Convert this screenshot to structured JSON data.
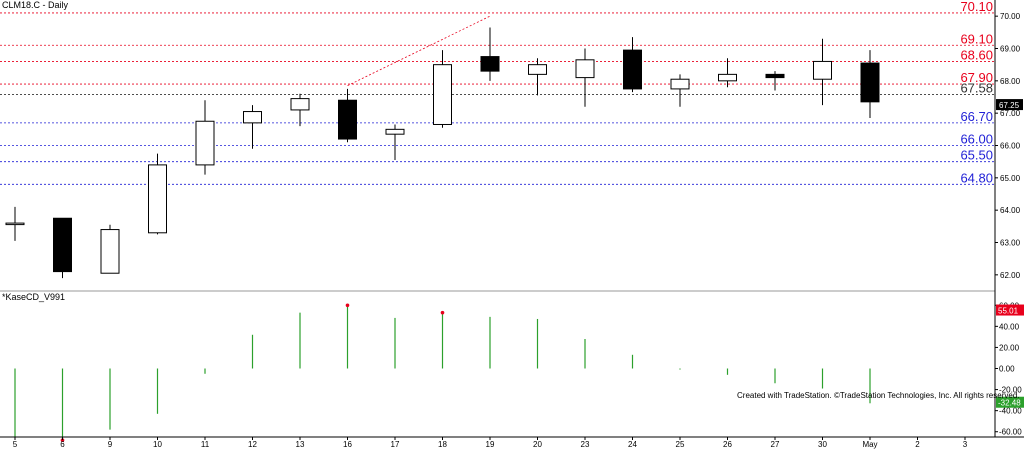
{
  "chart_data": [
    {
      "type": "candlestick",
      "title": "CLM18.C - Daily",
      "ylim": [
        61.5,
        70.5
      ],
      "y_ticks": [
        "70.00",
        "69.00",
        "68.00",
        "67.00",
        "66.00",
        "65.00",
        "64.00",
        "63.00",
        "62.00"
      ],
      "categories": [
        "5",
        "6",
        "9",
        "10",
        "11",
        "12",
        "13",
        "16",
        "17",
        "18",
        "19",
        "20",
        "23",
        "24",
        "25",
        "26",
        "27",
        "30",
        "May",
        "2",
        "3"
      ],
      "candles": [
        {
          "x": "5",
          "open": 63.6,
          "high": 64.1,
          "low": 63.05,
          "close": 63.6
        },
        {
          "x": "6",
          "open": 63.75,
          "high": 63.75,
          "low": 61.9,
          "close": 62.1
        },
        {
          "x": "9",
          "open": 62.05,
          "high": 63.55,
          "low": 62.05,
          "close": 63.4
        },
        {
          "x": "10",
          "open": 63.3,
          "high": 65.75,
          "low": 63.25,
          "close": 65.4
        },
        {
          "x": "11",
          "open": 65.4,
          "high": 67.4,
          "low": 65.1,
          "close": 66.75
        },
        {
          "x": "12",
          "open": 66.7,
          "high": 67.25,
          "low": 65.9,
          "close": 67.05
        },
        {
          "x": "13",
          "open": 67.1,
          "high": 67.6,
          "low": 66.6,
          "close": 67.45
        },
        {
          "x": "16",
          "open": 67.4,
          "high": 67.75,
          "low": 66.1,
          "close": 66.2
        },
        {
          "x": "17",
          "open": 66.35,
          "high": 66.65,
          "low": 65.55,
          "close": 66.5
        },
        {
          "x": "18",
          "open": 66.65,
          "high": 68.95,
          "low": 66.55,
          "close": 68.5
        },
        {
          "x": "19",
          "open": 68.75,
          "high": 69.65,
          "low": 68.0,
          "close": 68.3
        },
        {
          "x": "20",
          "open": 68.2,
          "high": 68.7,
          "low": 67.55,
          "close": 68.5
        },
        {
          "x": "23",
          "open": 68.1,
          "high": 69.0,
          "low": 67.2,
          "close": 68.65
        },
        {
          "x": "24",
          "open": 68.95,
          "high": 69.35,
          "low": 67.65,
          "close": 67.75
        },
        {
          "x": "25",
          "open": 67.75,
          "high": 68.2,
          "low": 67.2,
          "close": 68.05
        },
        {
          "x": "26",
          "open": 68.0,
          "high": 68.7,
          "low": 67.8,
          "close": 68.2
        },
        {
          "x": "27",
          "open": 68.2,
          "high": 68.3,
          "low": 67.7,
          "close": 68.1
        },
        {
          "x": "30",
          "open": 68.05,
          "high": 69.3,
          "low": 67.25,
          "close": 68.6
        },
        {
          "x": "May",
          "open": 68.55,
          "high": 68.95,
          "low": 66.85,
          "close": 67.35
        }
      ],
      "levels": [
        {
          "value": 70.1,
          "label": "70.10",
          "color": "#e8001c"
        },
        {
          "value": 69.1,
          "label": "69.10",
          "color": "#e8001c"
        },
        {
          "value": 68.6,
          "label": "68.60",
          "color": "#e8001c"
        },
        {
          "value": 67.9,
          "label": "67.90",
          "color": "#e8001c"
        },
        {
          "value": 67.58,
          "label": "67.58",
          "color": "#333333"
        },
        {
          "value": 66.7,
          "label": "66.70",
          "color": "#1f1fd6"
        },
        {
          "value": 66.0,
          "label": "66.00",
          "color": "#1f1fd6"
        },
        {
          "value": 65.5,
          "label": "65.50",
          "color": "#1f1fd6"
        },
        {
          "value": 64.8,
          "label": "64.80",
          "color": "#1f1fd6"
        }
      ],
      "trendline": {
        "from": {
          "x": "16",
          "y": 67.85
        },
        "to": {
          "x": "19",
          "y": 70.0
        },
        "color": "#e8001c"
      },
      "last_price": {
        "label": "67.25",
        "value": 67.25,
        "color": "#000000"
      }
    },
    {
      "type": "bar",
      "title": "*KaseCD_V991",
      "ylim": [
        -65,
        65
      ],
      "y_ticks": [
        "60.00",
        "40.00",
        "20.00",
        "0.00",
        "-20.00",
        "-40.00",
        "-60.00"
      ],
      "categories": [
        "5",
        "6",
        "9",
        "10",
        "11",
        "12",
        "13",
        "16",
        "17",
        "18",
        "19",
        "20",
        "23",
        "24",
        "25",
        "26",
        "27",
        "30",
        "May"
      ],
      "values": [
        -65,
        -68,
        -58,
        -43,
        -5,
        32,
        53,
        60,
        48,
        53,
        49,
        47,
        28,
        13,
        -1,
        -6,
        -14,
        -19,
        -33
      ],
      "color": "#2ca02c",
      "markers": [
        {
          "x": "6",
          "y": -68,
          "color": "#e8001c"
        },
        {
          "x": "16",
          "y": 60,
          "color": "#e8001c"
        },
        {
          "x": "18",
          "y": 53,
          "color": "#e8001c"
        }
      ],
      "badges": [
        {
          "label": "55.01",
          "value": 55.01,
          "color": "#e8001c"
        },
        {
          "label": "-32.48",
          "value": -32.48,
          "color": "#2ca02c"
        }
      ]
    }
  ],
  "credit": "Created with TradeStation. ©TradeStation Technologies, Inc. All rights reserved."
}
